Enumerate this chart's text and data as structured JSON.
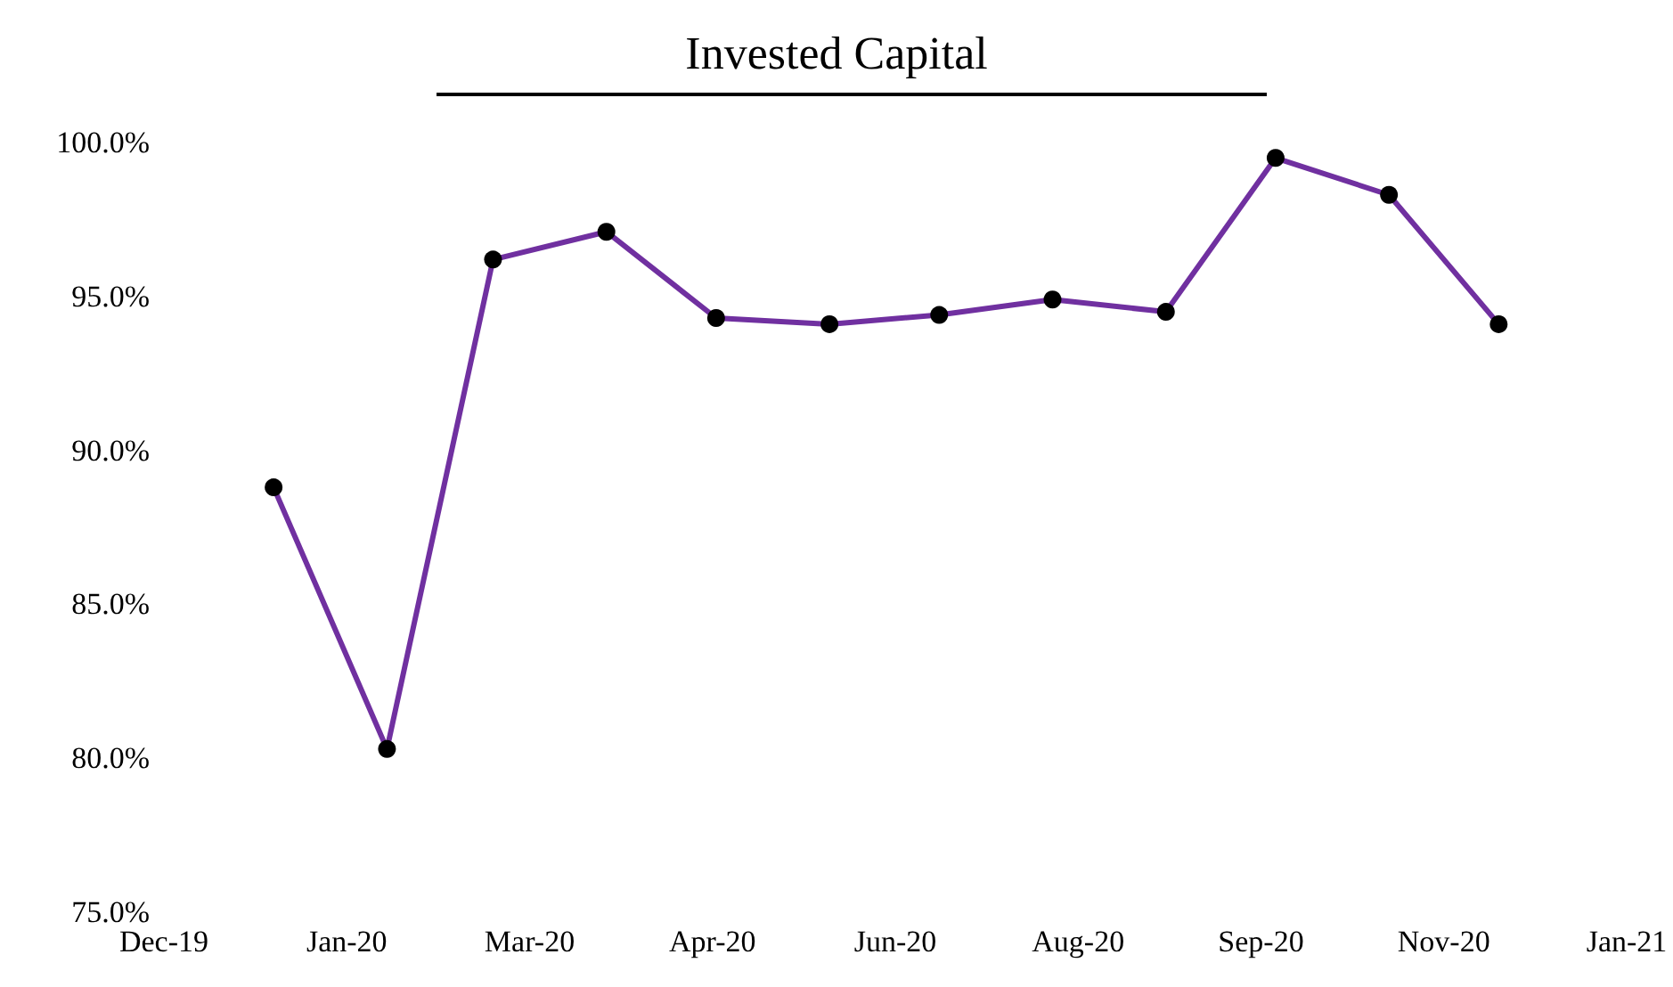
{
  "chart_data": {
    "type": "line",
    "title": "Invested Capital",
    "x": [
      "2019-12-31",
      "2020-01-31",
      "2020-02-29",
      "2020-03-31",
      "2020-04-30",
      "2020-05-31",
      "2020-06-30",
      "2020-07-31",
      "2020-08-31",
      "2020-09-30",
      "2020-10-31",
      "2020-11-30"
    ],
    "series": [
      {
        "color": "#7030a0",
        "values": [
          88.8,
          80.3,
          96.2,
          97.1,
          94.3,
          94.1,
          94.4,
          94.9,
          94.5,
          99.5,
          98.3,
          94.1
        ]
      }
    ],
    "xlim": [
      "2019-12-01",
      "2021-01-04"
    ],
    "xticks": [
      {
        "value": "2019-12-01",
        "label": "Dec-19"
      },
      {
        "value": "2020-01-20",
        "label": "Jan-20"
      },
      {
        "value": "2020-03-10",
        "label": "Mar-20"
      },
      {
        "value": "2020-04-29",
        "label": "Apr-20"
      },
      {
        "value": "2020-06-18",
        "label": "Jun-20"
      },
      {
        "value": "2020-08-07",
        "label": "Aug-20"
      },
      {
        "value": "2020-09-26",
        "label": "Sep-20"
      },
      {
        "value": "2020-11-15",
        "label": "Nov-20"
      },
      {
        "value": "2021-01-04",
        "label": "Jan-21"
      }
    ],
    "ylim": [
      75,
      100
    ],
    "yticks": [
      {
        "value": 75,
        "label": "75.0%"
      },
      {
        "value": 80,
        "label": "80.0%"
      },
      {
        "value": 85,
        "label": "85.0%"
      },
      {
        "value": 90,
        "label": "90.0%"
      },
      {
        "value": 95,
        "label": "95.0%"
      },
      {
        "value": 100,
        "label": "100.0%"
      }
    ],
    "marker": "circle",
    "line_style": "solid"
  }
}
